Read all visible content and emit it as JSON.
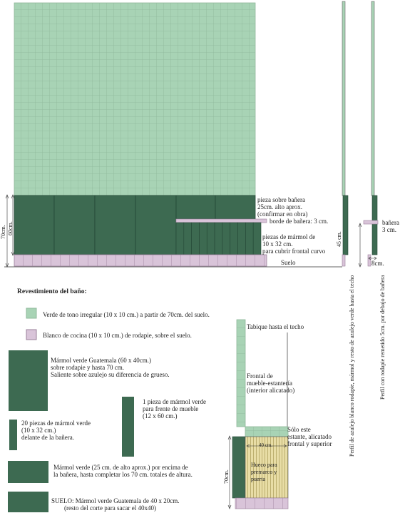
{
  "colors": {
    "tile_green": "#a8d3b5",
    "tile_grid": "#8fb89b",
    "marble_green": "#3d6a51",
    "plinth_pink": "#d9c4d9",
    "stripe_yellow": "#e8dda6"
  },
  "elevation": {
    "annotations": {
      "pieza_sobre_banera": "pieza sobre bañera\n25cm. alto aprox.\n(confirmar en obra)",
      "borde_banera": "borde de bañera: 3 cm.",
      "piezas_marmol": "piezas de mármol de\n10 x 32 cm.\npara cubrir frontal curvo",
      "suelo": "Suelo",
      "dim_70": "70cm.",
      "dim_60": "60cm."
    }
  },
  "profiles": {
    "dim_45": "45 cm.",
    "banera_label": "bañera\n3 cm.",
    "dim_8": "8cm.",
    "profile1_caption": "Perfil de azulejo blanco rodapie, mármol y resto de azulejo verde hasta el techo",
    "profile2_caption": "Perfil con rodapie remetido 5cm. por debajo de bañera"
  },
  "legend": {
    "title": "Revestimiento del baño:",
    "items": [
      "Verde de tono irregular (10 x 10 cm.) a partir de 70cm. del suelo.",
      "Blanco de cocina (10 x 10 cm.) de rodapie, sobre el suelo.",
      "Mármol verde Guatemala (60 x 40cm.)\nsobre rodapie y hasta 70 cm.\nSaliente sobre azulejo su diferencia de grueso.",
      "1 pieza de mármol verde\npara frente de mueble\n(12 x 60 cm.)",
      "20 piezas de mármol verde\n(10 x 32 cm.)\ndelante de la bañera.",
      "Mármol verde (25 cm. de alto aprox.) por encima de\nla bañera, hasta completar los 70 cm. totales de altura.",
      "SUELO: Mármol verde Guatemala de 40 x 20cm.\n        (resto del corte para sacar el 40x40)"
    ]
  },
  "cabinet": {
    "tabique": "Tabique hasta el techo",
    "frontal": "Frontal de\nmueble-estantería\n(interior alicatado)",
    "solo_este": "Sólo este\nestante, alicatado\nfrontal y superior",
    "dim_40": "40 cm.",
    "hueco": "Hueco para\npremarco y\npuerta",
    "dim_70": "70cm."
  }
}
